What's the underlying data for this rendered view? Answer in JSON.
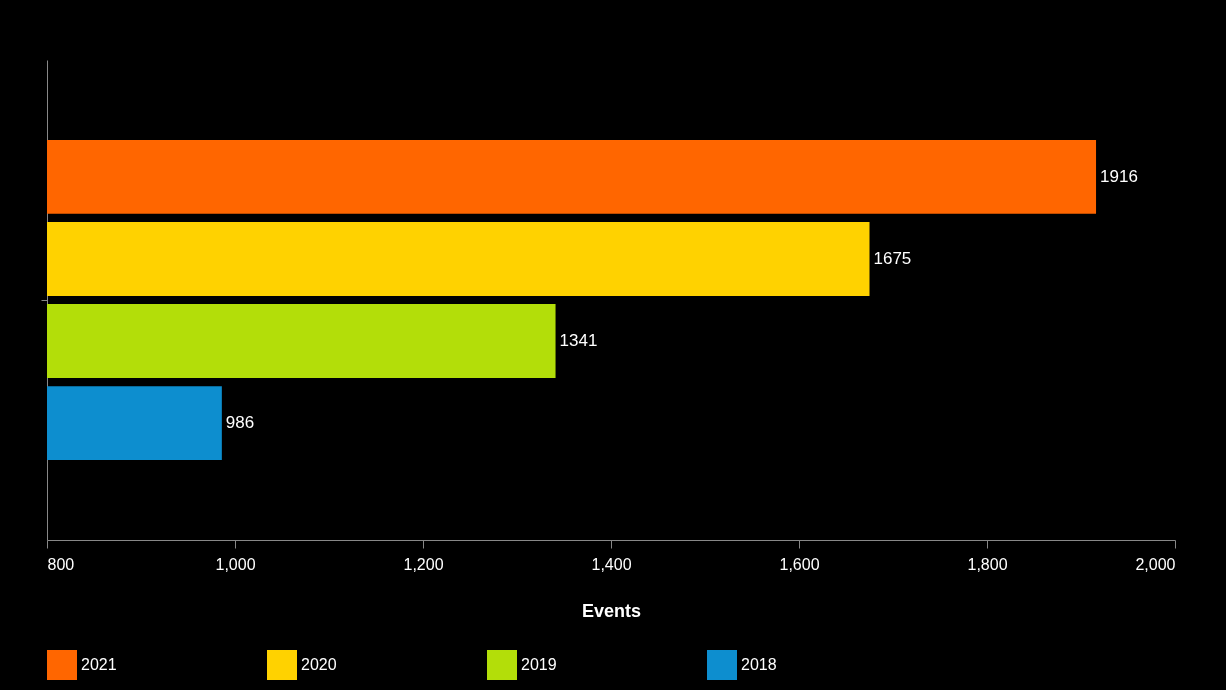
{
  "chart_data": {
    "type": "bar",
    "orientation": "horizontal",
    "xlabel": "Events",
    "categories": [
      null
    ],
    "series": [
      {
        "name": "2021",
        "color": "#ff6600",
        "values": [
          1916
        ]
      },
      {
        "name": "2020",
        "color": "#ffd200",
        "values": [
          1675
        ]
      },
      {
        "name": "2019",
        "color": "#b3de09",
        "values": [
          1341
        ]
      },
      {
        "name": "2018",
        "color": "#0d8ecf",
        "values": [
          986
        ]
      }
    ],
    "xlim": [
      800,
      2000
    ],
    "xticks": [
      800,
      {
        "value": 1000,
        "label": "1,000"
      },
      {
        "value": 1200,
        "label": "1,200"
      },
      {
        "value": 1400,
        "label": "1,400"
      },
      {
        "value": 1600,
        "label": "1,600"
      },
      {
        "value": 1800,
        "label": "1,800"
      },
      {
        "value": 2000,
        "label": "2,000"
      }
    ],
    "data_labels": true,
    "grid": false,
    "legend": "bottom"
  }
}
